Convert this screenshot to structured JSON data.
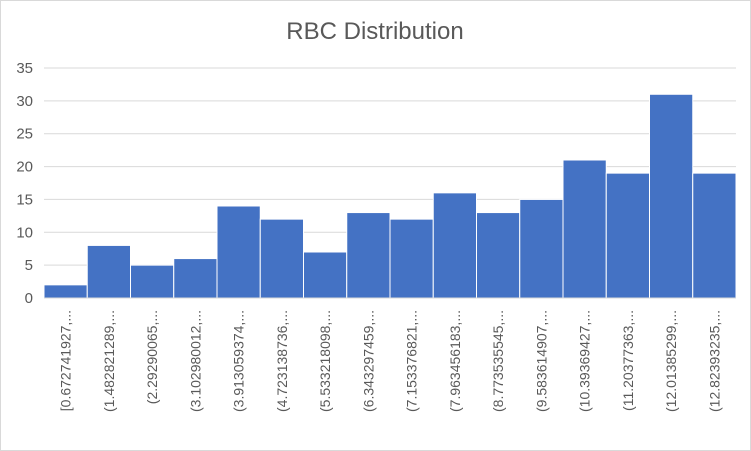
{
  "chart_data": {
    "type": "bar",
    "title": "RBC Distribution",
    "xlabel": "",
    "ylabel": "",
    "categories": [
      "[0.672741927,...",
      "(1.482821289,...",
      "(2.29290065,...",
      "(3.102980012,...",
      "(3.913059374,...",
      "(4.723138736,...",
      "(5.533218098,...",
      "(6.343297459,...",
      "(7.153376821,...",
      "(7.963456183,...",
      "(8.773535545,...",
      "(9.583614907,...",
      "(10.39369427,...",
      "(11.20377363,...",
      "(12.01385299,...",
      "(12.82393235,..."
    ],
    "values": [
      2,
      8,
      5,
      6,
      14,
      12,
      7,
      13,
      12,
      16,
      13,
      15,
      21,
      19,
      31,
      19
    ],
    "ylim": [
      0,
      35
    ],
    "yticks": [
      0,
      5,
      10,
      15,
      20,
      25,
      30,
      35
    ],
    "grid": true,
    "legend": "none",
    "colors": {
      "bar": "#4472c4",
      "bar_edge": "#ffffff",
      "grid": "#d9d9d9",
      "text": "#595959"
    }
  }
}
